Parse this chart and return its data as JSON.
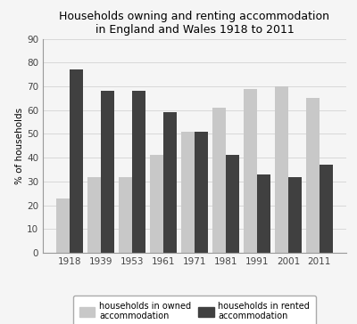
{
  "title": "Households owning and renting accommodation\nin England and Wales 1918 to 2011",
  "years": [
    "1918",
    "1939",
    "1953",
    "1961",
    "1971",
    "1981",
    "1991",
    "2001",
    "2011"
  ],
  "owned": [
    23,
    32,
    32,
    41,
    51,
    61,
    69,
    70,
    65
  ],
  "rented": [
    77,
    68,
    68,
    59,
    51,
    41,
    33,
    32,
    37
  ],
  "owned_color": "#c8c8c8",
  "rented_color": "#404040",
  "ylabel": "% of households",
  "ylim": [
    0,
    90
  ],
  "yticks": [
    0,
    10,
    20,
    30,
    40,
    50,
    60,
    70,
    80,
    90
  ],
  "legend_owned": "households in owned\naccommodation",
  "legend_rented": "households in rented\naccommodation",
  "bar_width": 0.42,
  "title_fontsize": 9.0,
  "axis_fontsize": 7.5,
  "legend_fontsize": 7.0,
  "background_color": "#f5f5f5",
  "grid_color": "#d8d8d8"
}
